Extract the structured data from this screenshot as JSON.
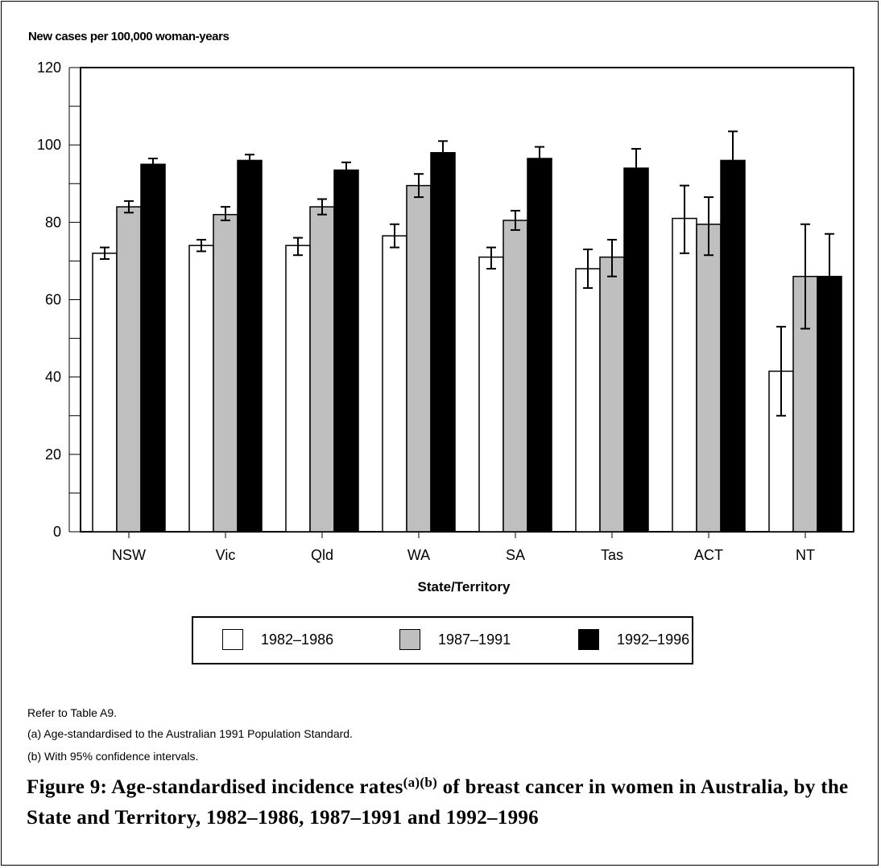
{
  "chart_data": {
    "type": "bar",
    "ylabel": "New cases per 100,000 woman-years",
    "xlabel": "State/Territory",
    "ylim": [
      0,
      120
    ],
    "yticks": [
      0,
      20,
      40,
      60,
      80,
      100,
      120
    ],
    "grid": false,
    "legend_position": "bottom",
    "categories": [
      "NSW",
      "Vic",
      "Qld",
      "WA",
      "SA",
      "Tas",
      "ACT",
      "NT"
    ],
    "series": [
      {
        "name": "1982–1986",
        "color": "#ffffff",
        "values": [
          72,
          74,
          74,
          76.5,
          71,
          68,
          81,
          41.5
        ],
        "ci_low": [
          70.5,
          72.5,
          71.5,
          73.5,
          68,
          63,
          72,
          30
        ],
        "ci_high": [
          73.5,
          75.5,
          76,
          79.5,
          73.5,
          73,
          89.5,
          53
        ]
      },
      {
        "name": "1987–1991",
        "color": "#bfbfbf",
        "values": [
          84,
          82,
          84,
          89.5,
          80.5,
          71,
          79.5,
          66
        ],
        "ci_low": [
          82.5,
          80.5,
          82,
          86.5,
          78,
          66,
          71.5,
          52.5
        ],
        "ci_high": [
          85.5,
          84,
          86,
          92.5,
          83,
          75.5,
          86.5,
          79.5
        ]
      },
      {
        "name": "1992–1996",
        "color": "#000000",
        "values": [
          95,
          96,
          93.5,
          98,
          96.5,
          94,
          96,
          66
        ],
        "ci_low": [
          94,
          95,
          92,
          96,
          93.5,
          89,
          88.5,
          56
        ],
        "ci_high": [
          96.5,
          97.5,
          95.5,
          101,
          99.5,
          99,
          103.5,
          77
        ]
      }
    ]
  },
  "notes": {
    "refer": "Refer  to Table A9.",
    "a": "(a) Age-standardised to the Australian 1991 Population Standard.",
    "b": "(b) With 95% confidence intervals."
  },
  "caption": {
    "part1": "Figure 9: Age-standardised incidence rates",
    "sup": "(a)(b)",
    "part2": " of breast cancer in women in Australia, by the State and Territory, 1982–1986, 1987–1991 and 1992–1996"
  }
}
